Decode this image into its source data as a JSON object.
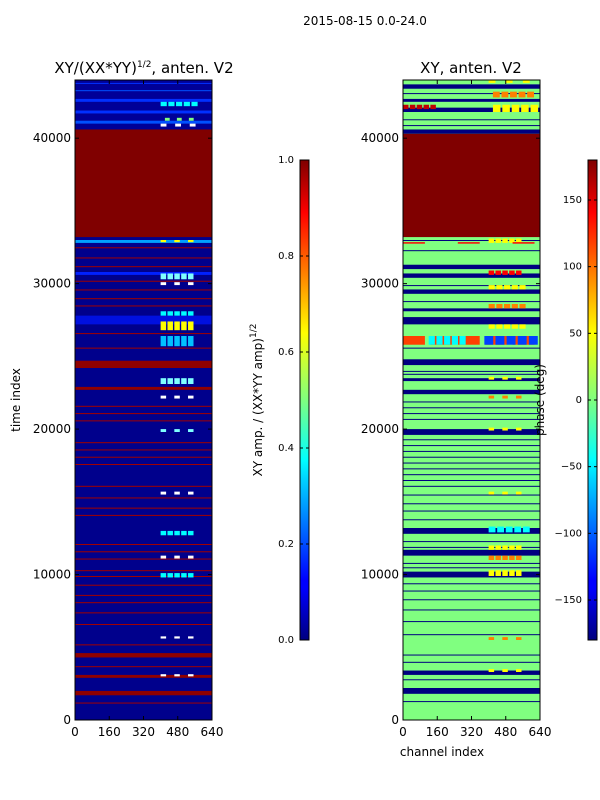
{
  "figure_title": "2015-08-15 0.0-24.0",
  "chart_data": [
    {
      "type": "heatmap",
      "title_main": "XY/(XX*YY)",
      "title_exp": "1/2",
      "title_suffix": ", anten. V2",
      "xlabel": "",
      "ylabel": "time index",
      "xlim": [
        0,
        640
      ],
      "ylim": [
        0,
        44000
      ],
      "xticks": [
        "0",
        "160",
        "320",
        "480",
        "640"
      ],
      "yticks": [
        "0",
        "10000",
        "20000",
        "30000",
        "40000"
      ],
      "background": "#00008c",
      "bands": [
        {
          "y0": 40600,
          "y1": 44000,
          "color": "#000097"
        },
        {
          "y0": 33200,
          "y1": 40600,
          "color": "#800000"
        },
        {
          "y0": 32800,
          "y1": 33000,
          "color": "#00a0ff"
        },
        {
          "y0": 30600,
          "y1": 30800,
          "color": "#0020ff"
        },
        {
          "y0": 27200,
          "y1": 27800,
          "color": "#0010e0"
        },
        {
          "y0": 24200,
          "y1": 24700,
          "color": "#900000"
        },
        {
          "y0": 22700,
          "y1": 22900,
          "color": "#900000"
        },
        {
          "y0": 4300,
          "y1": 4600,
          "color": "#900000"
        },
        {
          "y0": 2900,
          "y1": 3100,
          "color": "#900000"
        },
        {
          "y0": 1700,
          "y1": 2000,
          "color": "#900000"
        },
        {
          "y0": 42500,
          "y1": 42700,
          "color": "#0030ff"
        },
        {
          "y0": 41700,
          "y1": 41900,
          "color": "#0030ff"
        },
        {
          "y0": 41000,
          "y1": 41200,
          "color": "#0050ff"
        }
      ],
      "thin_lines": [
        {
          "y": 43800,
          "color": "#0030ff"
        },
        {
          "y": 43300,
          "color": "#0050ff"
        },
        {
          "y": 32500,
          "color": "#a00000"
        },
        {
          "y": 31800,
          "color": "#a00000"
        },
        {
          "y": 31200,
          "color": "#a00000"
        },
        {
          "y": 30200,
          "color": "#a00000"
        },
        {
          "y": 29600,
          "color": "#a00000"
        },
        {
          "y": 29000,
          "color": "#a00000"
        },
        {
          "y": 28500,
          "color": "#a00000"
        },
        {
          "y": 26600,
          "color": "#a00000"
        },
        {
          "y": 25600,
          "color": "#a00000"
        },
        {
          "y": 21600,
          "color": "#a00000"
        },
        {
          "y": 21100,
          "color": "#a00000"
        },
        {
          "y": 20600,
          "color": "#a00000"
        },
        {
          "y": 19100,
          "color": "#a00000"
        },
        {
          "y": 18600,
          "color": "#a00000"
        },
        {
          "y": 18100,
          "color": "#a00000"
        },
        {
          "y": 17600,
          "color": "#a00000"
        },
        {
          "y": 16100,
          "color": "#a00000"
        },
        {
          "y": 15300,
          "color": "#a00000"
        },
        {
          "y": 14600,
          "color": "#a00000"
        },
        {
          "y": 14100,
          "color": "#a00000"
        },
        {
          "y": 12100,
          "color": "#a00000"
        },
        {
          "y": 11600,
          "color": "#a00000"
        },
        {
          "y": 11100,
          "color": "#a00000"
        },
        {
          "y": 10300,
          "color": "#a00000"
        },
        {
          "y": 9900,
          "color": "#a00000"
        },
        {
          "y": 9300,
          "color": "#a00000"
        },
        {
          "y": 8600,
          "color": "#a00000"
        },
        {
          "y": 8100,
          "color": "#a00000"
        },
        {
          "y": 7400,
          "color": "#a00000"
        },
        {
          "y": 6600,
          "color": "#a00000"
        },
        {
          "y": 5200,
          "color": "#a00000"
        },
        {
          "y": 3700,
          "color": "#a00000"
        },
        {
          "y": 1200,
          "color": "#a00000"
        }
      ],
      "spots": [
        {
          "x0": 400,
          "x1": 580,
          "y0": 42200,
          "y1": 42500,
          "color": "#00ffff"
        },
        {
          "x0": 420,
          "x1": 560,
          "y0": 41200,
          "y1": 41400,
          "color": "#7fff7f"
        },
        {
          "x0": 400,
          "x1": 570,
          "y0": 40800,
          "y1": 41000,
          "color": "#ffffff"
        },
        {
          "x0": 400,
          "x1": 560,
          "y0": 32850,
          "y1": 33000,
          "color": "#ffff00"
        },
        {
          "x0": 400,
          "x1": 560,
          "y0": 30300,
          "y1": 30700,
          "color": "#7fffff"
        },
        {
          "x0": 400,
          "x1": 560,
          "y0": 29900,
          "y1": 30100,
          "color": "#ffffff"
        },
        {
          "x0": 400,
          "x1": 560,
          "y0": 27800,
          "y1": 28100,
          "color": "#00ffff"
        },
        {
          "x0": 400,
          "x1": 560,
          "y0": 26800,
          "y1": 27400,
          "color": "#ffff00"
        },
        {
          "x0": 400,
          "x1": 560,
          "y0": 25700,
          "y1": 26400,
          "color": "#00c0ff"
        },
        {
          "x0": 400,
          "x1": 560,
          "y0": 23100,
          "y1": 23500,
          "color": "#7fffff"
        },
        {
          "x0": 400,
          "x1": 560,
          "y0": 22100,
          "y1": 22300,
          "color": "#ffffff"
        },
        {
          "x0": 400,
          "x1": 560,
          "y0": 19800,
          "y1": 20000,
          "color": "#7fffff"
        },
        {
          "x0": 400,
          "x1": 560,
          "y0": 15500,
          "y1": 15700,
          "color": "#ffffff"
        },
        {
          "x0": 400,
          "x1": 560,
          "y0": 12700,
          "y1": 13000,
          "color": "#00ffff"
        },
        {
          "x0": 400,
          "x1": 560,
          "y0": 11100,
          "y1": 11300,
          "color": "#ffffff"
        },
        {
          "x0": 400,
          "x1": 560,
          "y0": 9800,
          "y1": 10100,
          "color": "#00ffff"
        },
        {
          "x0": 400,
          "x1": 560,
          "y0": 5600,
          "y1": 5750,
          "color": "#ffffff"
        },
        {
          "x0": 400,
          "x1": 560,
          "y0": 3000,
          "y1": 3150,
          "color": "#ffffff"
        }
      ],
      "colorbar": {
        "min": 0.0,
        "max": 1.0,
        "ticks": [
          "0.0",
          "0.2",
          "0.4",
          "0.6",
          "0.8",
          "1.0"
        ],
        "label_main": "XY amp. / (XX*YY amp)",
        "label_exp": "1/2"
      }
    },
    {
      "type": "heatmap",
      "title": "XY, anten. V2",
      "xlabel": "channel index",
      "ylabel": "",
      "xlim": [
        0,
        640
      ],
      "ylim": [
        0,
        44000
      ],
      "xticks": [
        "0",
        "160",
        "320",
        "480",
        "640"
      ],
      "yticks": [
        "0",
        "10000",
        "20000",
        "30000",
        "40000"
      ],
      "background": "#80ff80",
      "bands": [
        {
          "y0": 43400,
          "y1": 43700,
          "color": "#000080"
        },
        {
          "y0": 42500,
          "y1": 42700,
          "color": "#000080"
        },
        {
          "y0": 41800,
          "y1": 42100,
          "color": "#000080"
        },
        {
          "y0": 40300,
          "y1": 40600,
          "color": "#000080"
        },
        {
          "y0": 33200,
          "y1": 40300,
          "color": "#800000"
        },
        {
          "y0": 31000,
          "y1": 31300,
          "color": "#000080"
        },
        {
          "y0": 30400,
          "y1": 30700,
          "color": "#000080"
        },
        {
          "y0": 29300,
          "y1": 29600,
          "color": "#000080"
        },
        {
          "y0": 28100,
          "y1": 28300,
          "color": "#000080"
        },
        {
          "y0": 27200,
          "y1": 27700,
          "color": "#000080"
        },
        {
          "y0": 24400,
          "y1": 24800,
          "color": "#000080"
        },
        {
          "y0": 23300,
          "y1": 23500,
          "color": "#000080"
        },
        {
          "y0": 22400,
          "y1": 22700,
          "color": "#000080"
        },
        {
          "y0": 19600,
          "y1": 20000,
          "color": "#000080"
        },
        {
          "y0": 12800,
          "y1": 13200,
          "color": "#000080"
        },
        {
          "y0": 11300,
          "y1": 11700,
          "color": "#000080"
        },
        {
          "y0": 9800,
          "y1": 10200,
          "color": "#000080"
        },
        {
          "y0": 3100,
          "y1": 3400,
          "color": "#000080"
        },
        {
          "y0": 1800,
          "y1": 2200,
          "color": "#000080"
        }
      ],
      "thin_lines": [
        {
          "y": 43100,
          "color": "#000080"
        },
        {
          "y": 41300,
          "color": "#000080"
        },
        {
          "y": 40900,
          "color": "#000080"
        },
        {
          "y": 33000,
          "color": "#000080"
        },
        {
          "y": 32300,
          "color": "#000080"
        },
        {
          "y": 29900,
          "color": "#000080"
        },
        {
          "y": 28800,
          "color": "#000080"
        },
        {
          "y": 25600,
          "color": "#000080"
        },
        {
          "y": 24000,
          "color": "#000080"
        },
        {
          "y": 23800,
          "color": "#000080"
        },
        {
          "y": 21900,
          "color": "#000080"
        },
        {
          "y": 21500,
          "color": "#000080"
        },
        {
          "y": 21100,
          "color": "#000080"
        },
        {
          "y": 20700,
          "color": "#000080"
        },
        {
          "y": 19300,
          "color": "#000080"
        },
        {
          "y": 18900,
          "color": "#000080"
        },
        {
          "y": 18500,
          "color": "#000080"
        },
        {
          "y": 18100,
          "color": "#000080"
        },
        {
          "y": 17700,
          "color": "#000080"
        },
        {
          "y": 17300,
          "color": "#000080"
        },
        {
          "y": 16900,
          "color": "#000080"
        },
        {
          "y": 16500,
          "color": "#000080"
        },
        {
          "y": 16100,
          "color": "#000080"
        },
        {
          "y": 15500,
          "color": "#000080"
        },
        {
          "y": 14900,
          "color": "#000080"
        },
        {
          "y": 14400,
          "color": "#000080"
        },
        {
          "y": 13800,
          "color": "#000080"
        },
        {
          "y": 12300,
          "color": "#000080"
        },
        {
          "y": 11900,
          "color": "#000080"
        },
        {
          "y": 10800,
          "color": "#000080"
        },
        {
          "y": 10500,
          "color": "#000080"
        },
        {
          "y": 9400,
          "color": "#000080"
        },
        {
          "y": 8900,
          "color": "#000080"
        },
        {
          "y": 8300,
          "color": "#000080"
        },
        {
          "y": 7600,
          "color": "#000080"
        },
        {
          "y": 6800,
          "color": "#000080"
        },
        {
          "y": 5900,
          "color": "#000080"
        },
        {
          "y": 4500,
          "color": "#000080"
        },
        {
          "y": 4000,
          "color": "#000080"
        },
        {
          "y": 2800,
          "color": "#000080"
        },
        {
          "y": 1300,
          "color": "#000080"
        }
      ],
      "spots": [
        {
          "x0": 400,
          "x1": 600,
          "y0": 43800,
          "y1": 44000,
          "color": "#ffff00"
        },
        {
          "x0": 420,
          "x1": 620,
          "y0": 42800,
          "y1": 43200,
          "color": "#ff8000"
        },
        {
          "x0": 0,
          "x1": 160,
          "y0": 42000,
          "y1": 42300,
          "color": "#c00000"
        },
        {
          "x0": 420,
          "x1": 640,
          "y0": 41800,
          "y1": 42300,
          "color": "#ffff00"
        },
        {
          "x0": 400,
          "x1": 560,
          "y0": 32800,
          "y1": 33100,
          "color": "#ffff00"
        },
        {
          "x0": 0,
          "x1": 640,
          "y0": 32750,
          "y1": 32850,
          "color": "#ff0000"
        },
        {
          "x0": 400,
          "x1": 560,
          "y0": 30600,
          "y1": 30900,
          "color": "#ff0000"
        },
        {
          "x0": 400,
          "x1": 580,
          "y0": 29600,
          "y1": 29900,
          "color": "#ffff00"
        },
        {
          "x0": 400,
          "x1": 580,
          "y0": 28300,
          "y1": 28600,
          "color": "#ff8000"
        },
        {
          "x0": 400,
          "x1": 580,
          "y0": 26900,
          "y1": 27200,
          "color": "#ffff00"
        },
        {
          "x0": 0,
          "x1": 640,
          "y0": 25800,
          "y1": 26400,
          "color": "#ff4000"
        },
        {
          "x0": 120,
          "x1": 300,
          "y0": 25800,
          "y1": 26400,
          "color": "#00ffff"
        },
        {
          "x0": 380,
          "x1": 640,
          "y0": 25800,
          "y1": 26400,
          "color": "#0040ff"
        },
        {
          "x0": 400,
          "x1": 560,
          "y0": 23400,
          "y1": 23600,
          "color": "#ffff00"
        },
        {
          "x0": 400,
          "x1": 560,
          "y0": 22100,
          "y1": 22300,
          "color": "#ff8000"
        },
        {
          "x0": 400,
          "x1": 560,
          "y0": 19900,
          "y1": 20100,
          "color": "#ffff00"
        },
        {
          "x0": 400,
          "x1": 560,
          "y0": 15500,
          "y1": 15700,
          "color": "#ffff00"
        },
        {
          "x0": 400,
          "x1": 600,
          "y0": 12900,
          "y1": 13300,
          "color": "#00ffff"
        },
        {
          "x0": 400,
          "x1": 560,
          "y0": 11700,
          "y1": 12000,
          "color": "#ffff00"
        },
        {
          "x0": 400,
          "x1": 560,
          "y0": 11000,
          "y1": 11300,
          "color": "#ff8000"
        },
        {
          "x0": 400,
          "x1": 560,
          "y0": 9900,
          "y1": 10300,
          "color": "#ffff00"
        },
        {
          "x0": 400,
          "x1": 560,
          "y0": 5500,
          "y1": 5700,
          "color": "#ff8000"
        },
        {
          "x0": 400,
          "x1": 560,
          "y0": 3300,
          "y1": 3500,
          "color": "#ffff00"
        }
      ],
      "colorbar": {
        "min": -180,
        "max": 180,
        "ticks": [
          "−150",
          "−100",
          "−50",
          "0",
          "50",
          "100",
          "150"
        ],
        "tick_values": [
          -150,
          -100,
          -50,
          0,
          50,
          100,
          150
        ],
        "label": "phase (deg)"
      }
    }
  ]
}
